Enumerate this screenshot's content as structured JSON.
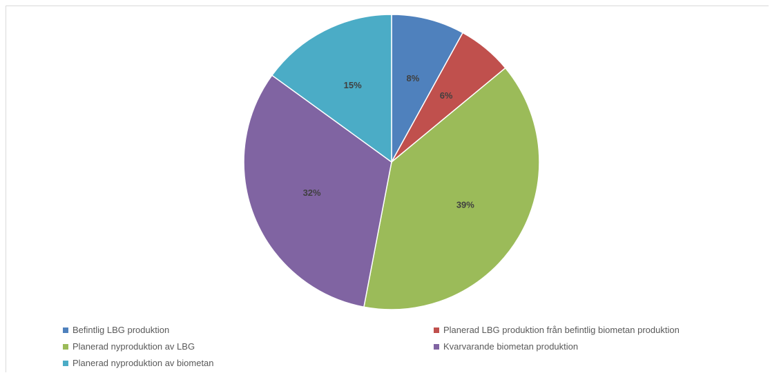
{
  "chart_data": {
    "type": "pie",
    "categories": [
      "Befintlig LBG produktion",
      "Planerad LBG produktion från befintlig biometan produktion",
      "Planerad nyproduktion av LBG",
      "Kvarvarande biometan produktion",
      "Planerad nyproduktion av biometan"
    ],
    "values": [
      8,
      6,
      39,
      32,
      15
    ],
    "labels": [
      "8%",
      "6%",
      "39%",
      "32%",
      "15%"
    ],
    "colors": [
      "#4f81bd",
      "#c0504d",
      "#9bbb59",
      "#8064a2",
      "#4bacc6"
    ],
    "legend_position": "bottom",
    "title": ""
  }
}
